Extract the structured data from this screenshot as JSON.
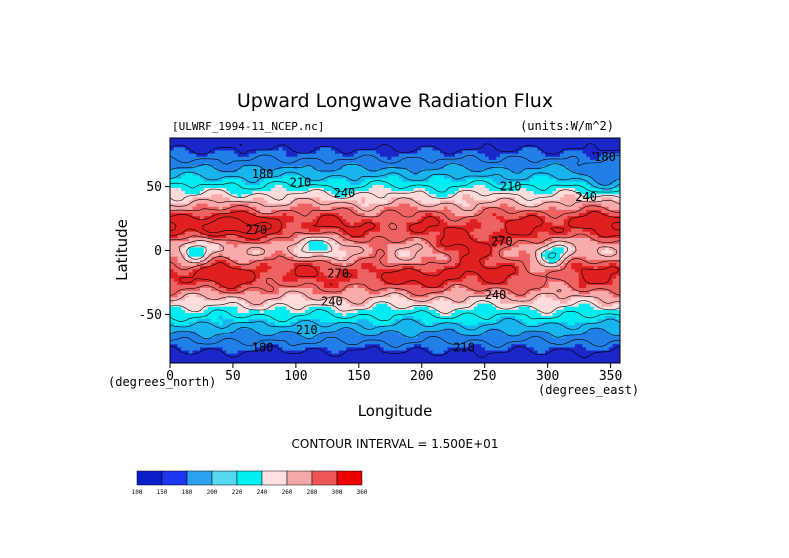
{
  "chart_data": {
    "type": "heatmap",
    "title": "Upward Longwave Radiation Flux",
    "source_label": "[ULWRF_1994-11_NCEP.nc]",
    "units_label": "(units:W/m^2)",
    "xlabel": "Longitude",
    "ylabel": "Latitude",
    "x_unit_label": "(degrees_east)",
    "y_unit_label": "(degrees_north)",
    "xlim": [
      0,
      357.5
    ],
    "ylim": [
      -88,
      88
    ],
    "x_ticks": [
      0,
      50,
      100,
      150,
      200,
      250,
      300,
      350
    ],
    "y_ticks": [
      50,
      0,
      -50
    ],
    "contour_interval_text": "CONTOUR INTERVAL = 1.500E+01",
    "contour_labels": [
      {
        "text": "180",
        "lon": 65,
        "lat": 60
      },
      {
        "text": "210",
        "lon": 95,
        "lat": 53
      },
      {
        "text": "240",
        "lon": 130,
        "lat": 45
      },
      {
        "text": "270",
        "lon": 60,
        "lat": 16
      },
      {
        "text": "210",
        "lon": 262,
        "lat": 50
      },
      {
        "text": "240",
        "lon": 322,
        "lat": 42
      },
      {
        "text": "180",
        "lon": 337,
        "lat": 73
      },
      {
        "text": "270",
        "lon": 255,
        "lat": 7
      },
      {
        "text": "240",
        "lon": 120,
        "lat": -40
      },
      {
        "text": "240",
        "lon": 250,
        "lat": -35
      },
      {
        "text": "270",
        "lon": 125,
        "lat": -18
      },
      {
        "text": "210",
        "lon": 100,
        "lat": -62
      },
      {
        "text": "180",
        "lon": 65,
        "lat": -76
      },
      {
        "text": "210",
        "lon": 225,
        "lat": -76
      }
    ],
    "colorbar": {
      "levels": [
        "100",
        "150",
        "180",
        "200",
        "220",
        "240",
        "260",
        "280",
        "300",
        "360"
      ],
      "colors": [
        "#0a1ecc",
        "#1f36f0",
        "#2aa2f0",
        "#55d8f0",
        "#00f0f0",
        "#fde0e0",
        "#f6a8a8",
        "#ee5656",
        "#ee0000"
      ]
    },
    "field_palette": [
      "#1b27c8",
      "#2080e8",
      "#18b4ee",
      "#00ecf0",
      "#ffdcdc",
      "#f9aaaa",
      "#ef6262",
      "#e02020"
    ]
  }
}
